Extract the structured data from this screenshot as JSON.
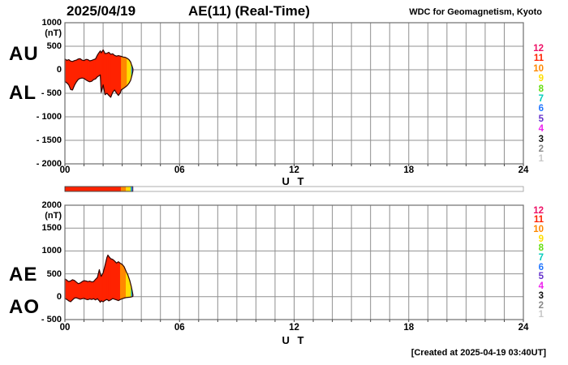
{
  "header": {
    "date": "2025/04/19",
    "title": "AE(11) (Real-Time)",
    "credit": "WDC for Geomagnetism, Kyoto"
  },
  "footer": {
    "created": "[Created at 2025-04-19 03:40UT]"
  },
  "station_colors": {
    "12": "#ee1166",
    "11": "#ff2200",
    "10": "#ff8800",
    "9": "#ffdf00",
    "8": "#66dd11",
    "7": "#00ccbb",
    "6": "#2277ff",
    "5": "#6633cc",
    "4": "#ee22ee",
    "3": "#111111",
    "2": "#888888",
    "1": "#c8c8c8"
  },
  "legend": {
    "values": [
      12,
      11,
      10,
      9,
      8,
      7,
      6,
      5,
      4,
      3,
      2,
      1
    ]
  },
  "strip": {
    "segments": [
      {
        "from": 0.0,
        "to": 2.93,
        "stations": 11
      },
      {
        "from": 2.93,
        "to": 3.2,
        "stations": 10
      },
      {
        "from": 3.2,
        "to": 3.44,
        "stations": 9
      },
      {
        "from": 3.44,
        "to": 3.5,
        "stations": 7
      },
      {
        "from": 3.5,
        "to": 3.56,
        "stations": 5
      }
    ]
  },
  "chart_data": [
    {
      "type": "area",
      "left_labels": [
        "AU",
        "AL"
      ],
      "unit": "(nT)",
      "xlabel": "U T",
      "ylim": [
        -2000,
        1000
      ],
      "xlim_hours": [
        0,
        24
      ],
      "grid": "hourly-x, 500nT-y",
      "y_ticks": [
        {
          "v": 1000,
          "label": "1000"
        },
        {
          "v": 500,
          "label": "500"
        },
        {
          "v": 0,
          "label": "0"
        },
        {
          "v": -500,
          "label": "- 500"
        },
        {
          "v": -1000,
          "label": "- 1000"
        },
        {
          "v": -1500,
          "label": "- 1500"
        },
        {
          "v": -2000,
          "label": "- 2000"
        }
      ],
      "x_ticks": [
        {
          "h": 0,
          "label": "00"
        },
        {
          "h": 6,
          "label": "06"
        },
        {
          "h": 12,
          "label": "12"
        },
        {
          "h": 18,
          "label": "18"
        },
        {
          "h": 24,
          "label": "24"
        }
      ],
      "series_note": "band = [UT hour, AU upper nT, AL lower nT, contributing stations]",
      "band": [
        [
          0.0,
          230,
          -250,
          11
        ],
        [
          0.1,
          200,
          -280,
          11
        ],
        [
          0.2,
          215,
          -320,
          11
        ],
        [
          0.3,
          185,
          -420,
          11
        ],
        [
          0.4,
          175,
          -430,
          11
        ],
        [
          0.5,
          195,
          -330,
          11
        ],
        [
          0.6,
          205,
          -260,
          11
        ],
        [
          0.7,
          230,
          -205,
          11
        ],
        [
          0.8,
          235,
          -185,
          11
        ],
        [
          0.9,
          205,
          -175,
          11
        ],
        [
          1.0,
          195,
          -185,
          11
        ],
        [
          1.1,
          220,
          -215,
          11
        ],
        [
          1.2,
          215,
          -240,
          11
        ],
        [
          1.3,
          190,
          -255,
          11
        ],
        [
          1.4,
          200,
          -245,
          11
        ],
        [
          1.5,
          215,
          -210,
          11
        ],
        [
          1.6,
          230,
          -195,
          11
        ],
        [
          1.7,
          310,
          -150,
          11
        ],
        [
          1.78,
          360,
          -130,
          11
        ],
        [
          1.85,
          400,
          -110,
          11
        ],
        [
          1.9,
          360,
          -480,
          11
        ],
        [
          2.0,
          420,
          -320,
          11
        ],
        [
          2.05,
          385,
          -420,
          11
        ],
        [
          2.1,
          345,
          -530,
          11
        ],
        [
          2.2,
          350,
          -500,
          11
        ],
        [
          2.3,
          370,
          -545,
          11
        ],
        [
          2.4,
          330,
          -585,
          11
        ],
        [
          2.5,
          340,
          -480,
          11
        ],
        [
          2.6,
          305,
          -430,
          11
        ],
        [
          2.7,
          290,
          -495,
          11
        ],
        [
          2.8,
          300,
          -545,
          11
        ],
        [
          2.9,
          290,
          -490,
          11
        ],
        [
          2.95,
          285,
          -430,
          10
        ],
        [
          3.05,
          270,
          -400,
          10
        ],
        [
          3.15,
          265,
          -370,
          10
        ],
        [
          3.25,
          245,
          -340,
          9
        ],
        [
          3.35,
          215,
          -290,
          9
        ],
        [
          3.44,
          165,
          -225,
          9
        ],
        [
          3.48,
          115,
          -165,
          7
        ],
        [
          3.52,
          70,
          -100,
          5
        ],
        [
          3.56,
          20,
          -30,
          5
        ]
      ]
    },
    {
      "type": "area",
      "left_labels": [
        "AE",
        "AO"
      ],
      "unit": "(nT)",
      "xlabel": "U T",
      "ylim": [
        -500,
        2000
      ],
      "xlim_hours": [
        0,
        24
      ],
      "grid": "hourly-x, 500nT-y",
      "y_ticks": [
        {
          "v": 2000,
          "label": "2000"
        },
        {
          "v": 1500,
          "label": "1500"
        },
        {
          "v": 1000,
          "label": "1000"
        },
        {
          "v": 500,
          "label": "500"
        },
        {
          "v": 0,
          "label": "0"
        },
        {
          "v": -500,
          "label": "- 500"
        }
      ],
      "x_ticks": [
        {
          "h": 0,
          "label": "00"
        },
        {
          "h": 6,
          "label": "06"
        },
        {
          "h": 12,
          "label": "12"
        },
        {
          "h": 18,
          "label": "18"
        },
        {
          "h": 24,
          "label": "24"
        }
      ],
      "series_note": "band = [UT hour, AE upper nT, AO lower nT, contributing stations]",
      "band": [
        [
          0.0,
          390,
          -40,
          11
        ],
        [
          0.1,
          360,
          -60,
          11
        ],
        [
          0.2,
          330,
          -90,
          11
        ],
        [
          0.3,
          345,
          -110,
          11
        ],
        [
          0.4,
          370,
          -70,
          11
        ],
        [
          0.5,
          355,
          -30,
          11
        ],
        [
          0.6,
          320,
          -25,
          11
        ],
        [
          0.7,
          285,
          -40,
          11
        ],
        [
          0.8,
          300,
          -55,
          11
        ],
        [
          0.9,
          330,
          -45,
          11
        ],
        [
          1.0,
          350,
          -35,
          11
        ],
        [
          1.1,
          345,
          -55,
          11
        ],
        [
          1.2,
          330,
          -65,
          11
        ],
        [
          1.3,
          340,
          -50,
          11
        ],
        [
          1.4,
          325,
          -60,
          11
        ],
        [
          1.5,
          330,
          -45,
          11
        ],
        [
          1.6,
          380,
          -70,
          11
        ],
        [
          1.7,
          420,
          -45,
          11
        ],
        [
          1.8,
          590,
          -90,
          11
        ],
        [
          1.85,
          500,
          -120,
          11
        ],
        [
          1.9,
          445,
          -90,
          11
        ],
        [
          2.0,
          520,
          -110,
          11
        ],
        [
          2.1,
          680,
          -80,
          11
        ],
        [
          2.2,
          860,
          -60,
          11
        ],
        [
          2.25,
          910,
          -75,
          11
        ],
        [
          2.3,
          880,
          -90,
          11
        ],
        [
          2.4,
          830,
          -70,
          11
        ],
        [
          2.5,
          815,
          -40,
          11
        ],
        [
          2.6,
          780,
          -55,
          11
        ],
        [
          2.7,
          735,
          -70,
          11
        ],
        [
          2.8,
          765,
          -85,
          11
        ],
        [
          2.9,
          730,
          -60,
          10
        ],
        [
          3.0,
          705,
          -45,
          10
        ],
        [
          3.1,
          655,
          -30,
          10
        ],
        [
          3.2,
          560,
          -20,
          9
        ],
        [
          3.3,
          470,
          -15,
          9
        ],
        [
          3.4,
          350,
          -10,
          9
        ],
        [
          3.47,
          230,
          -5,
          7
        ],
        [
          3.52,
          130,
          0,
          5
        ],
        [
          3.56,
          40,
          10,
          5
        ]
      ]
    }
  ]
}
